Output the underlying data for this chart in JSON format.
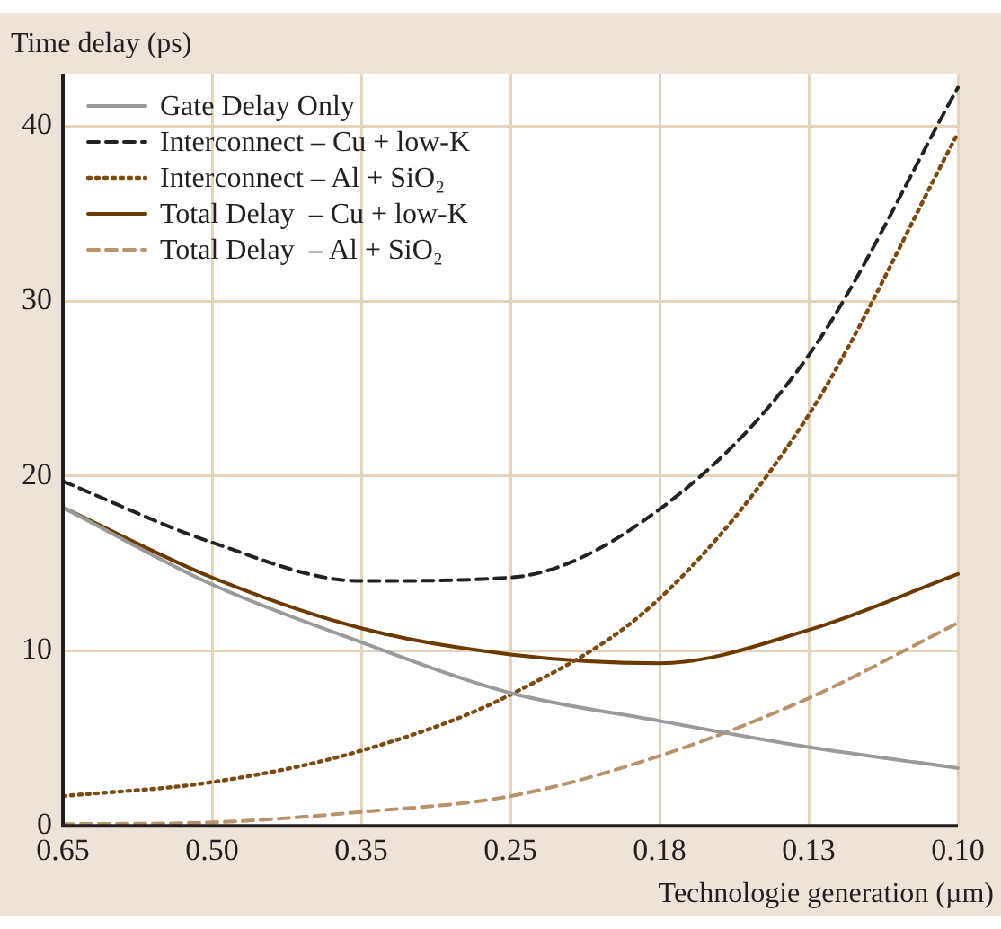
{
  "chart_data": {
    "type": "line",
    "xlabel": "Technologie generation (µm)",
    "ylabel": "Time delay (ps)",
    "categories": [
      "0.65",
      "0.50",
      "0.35",
      "0.25",
      "0.18",
      "0.13",
      "0.10"
    ],
    "ylim": [
      0,
      43
    ],
    "yticks": [
      0,
      10,
      20,
      30,
      40
    ],
    "grid": true,
    "legend": "top left",
    "marker": "none",
    "series": [
      {
        "name": "Gate Delay Only",
        "color": "#9a9a9a",
        "line_style": "solid",
        "values": [
          18.2,
          13.8,
          10.5,
          7.6,
          6.0,
          4.5,
          3.3
        ]
      },
      {
        "name": "Interconnect – Cu + low-K",
        "color": "#222222",
        "line_style": "dashed",
        "values": [
          19.7,
          16.2,
          14.0,
          14.2,
          18.1,
          26.9,
          42.2
        ]
      },
      {
        "name": "Interconnect – Al + SiO₂",
        "color": "#7a4a10",
        "line_style": "dotted",
        "values": [
          1.7,
          2.5,
          4.3,
          7.5,
          13.0,
          23.5,
          39.6
        ]
      },
      {
        "name": "Total Delay  – Cu + low-K",
        "color": "#6b3a00",
        "line_style": "solid",
        "values": [
          18.2,
          14.2,
          11.3,
          9.8,
          9.3,
          11.2,
          14.4
        ]
      },
      {
        "name": "Total Delay  – Al + SiO₂",
        "color": "#b8926a",
        "line_style": "dashed",
        "values": [
          0.1,
          0.2,
          0.8,
          1.7,
          4.0,
          7.3,
          11.6
        ]
      }
    ]
  }
}
